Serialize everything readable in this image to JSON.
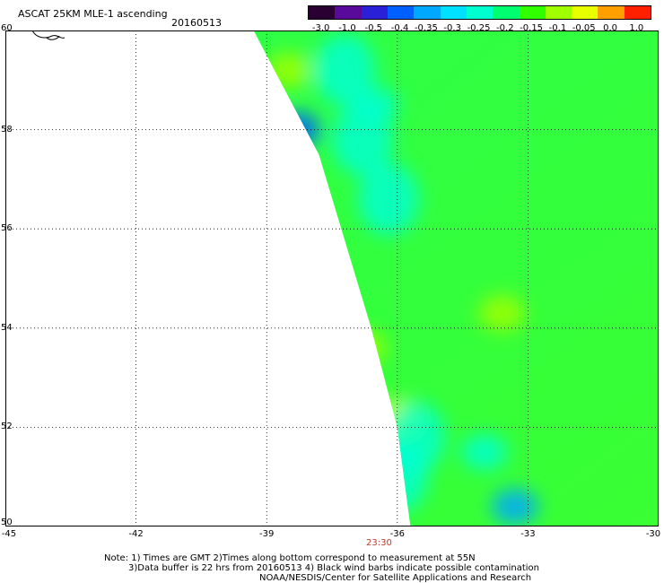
{
  "title": "ASCAT 25KM MLE-1 ascending",
  "date": "20160513",
  "colorbar": {
    "labels": [
      "-3.0",
      "-1.0",
      "-0.5",
      "-0.4",
      "-0.35",
      "-0.3",
      "-0.25",
      "-0.2",
      "-0.15",
      "-0.1",
      "-0.05",
      "0.0",
      "1.0"
    ],
    "colors": [
      "#2a0033",
      "#5a0a9a",
      "#2a20d8",
      "#0060ff",
      "#00a8ff",
      "#00e0ff",
      "#00ffd0",
      "#00ff70",
      "#30ff00",
      "#a0ff00",
      "#e8ff00",
      "#ffa000",
      "#ff2000"
    ]
  },
  "axes": {
    "lon_ticks": [
      "-45",
      "-42",
      "-39",
      "-36",
      "-33",
      "-30"
    ],
    "lat_ticks": [
      "60",
      "58",
      "56",
      "54",
      "52",
      "50"
    ]
  },
  "map_data": {
    "lon_range": [
      -45,
      -30
    ],
    "lat_range": [
      50,
      60
    ],
    "swath_west_edge": [
      [
        -39.3,
        60
      ],
      [
        -37.8,
        57.5
      ],
      [
        -36.6,
        54
      ],
      [
        -36.0,
        52
      ],
      [
        -35.7,
        50
      ]
    ],
    "value_hotspots": [
      {
        "lon": -38.5,
        "lat": 59.2,
        "value": -0.1
      },
      {
        "lon": -38.3,
        "lat": 58,
        "value": -0.4
      },
      {
        "lon": -36.8,
        "lat": 53.6,
        "value": -0.1
      },
      {
        "lon": -36.0,
        "lat": 52.2,
        "value": -0.05
      },
      {
        "lon": -33.6,
        "lat": 54.3,
        "value": -0.1
      },
      {
        "lon": -33.3,
        "lat": 50.4,
        "value": -0.35
      },
      {
        "lon": -36.5,
        "lat": 58.5,
        "value": -0.25
      },
      {
        "lon": -34.0,
        "lat": 51.5,
        "value": -0.25
      }
    ],
    "background_value": -0.15
  },
  "time_label": "23:30",
  "notes": [
    "Note: 1) Times are GMT 2)Times along bottom correspond to measurement at 55N",
    "3)Data buffer is 22 hrs from 20160513 4) Black wind barbs indicate possible contamination",
    "NOAA/NESDIS/Center for Satellite Applications and Research"
  ]
}
